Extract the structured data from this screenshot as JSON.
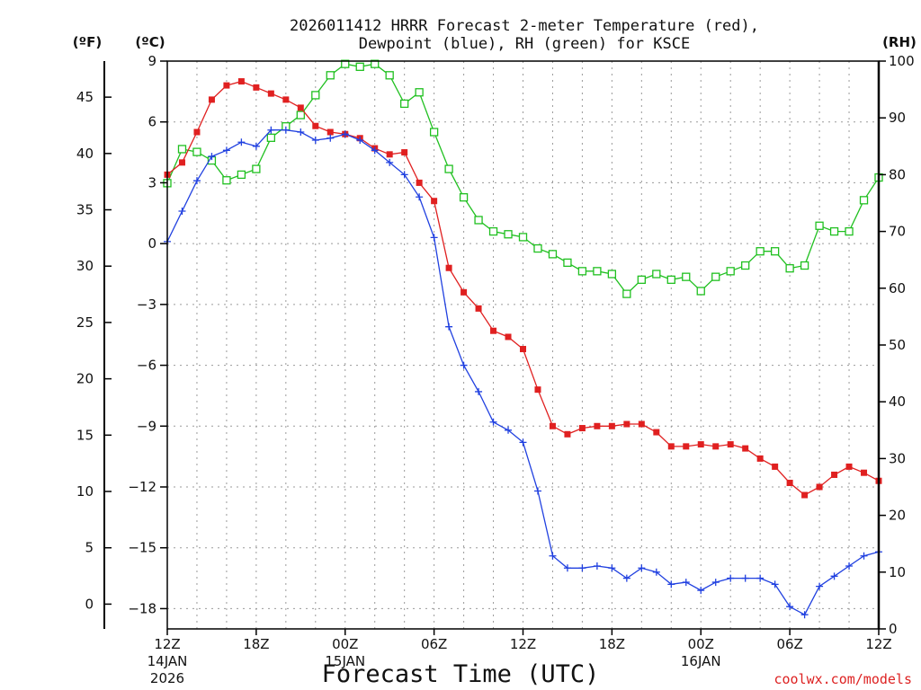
{
  "chart_data": {
    "type": "line",
    "title": {
      "line1": "2026011412 HRRR Forecast 2-meter Temperature (red),",
      "line2": "Dewpoint (blue), RH (green) for KSCE"
    },
    "xlabel": "Forecast Time (UTC)",
    "x_axis": {
      "range_hours": [
        0,
        48
      ],
      "grid_every_hours": 2,
      "ticks": [
        {
          "hour": 0,
          "label": "12Z",
          "sub1": "14JAN",
          "sub2": "2026"
        },
        {
          "hour": 6,
          "label": "18Z",
          "sub1": "",
          "sub2": ""
        },
        {
          "hour": 12,
          "label": "00Z",
          "sub1": "15JAN",
          "sub2": ""
        },
        {
          "hour": 18,
          "label": "06Z",
          "sub1": "",
          "sub2": ""
        },
        {
          "hour": 24,
          "label": "12Z",
          "sub1": "",
          "sub2": ""
        },
        {
          "hour": 30,
          "label": "18Z",
          "sub1": "",
          "sub2": ""
        },
        {
          "hour": 36,
          "label": "00Z",
          "sub1": "16JAN",
          "sub2": ""
        },
        {
          "hour": 42,
          "label": "06Z",
          "sub1": "",
          "sub2": ""
        },
        {
          "hour": 48,
          "label": "12Z",
          "sub1": "",
          "sub2": ""
        }
      ]
    },
    "y_axis_celsius": {
      "unit_label": "(ºC)",
      "ylim": [
        -19,
        9
      ],
      "ticks": [
        9,
        6,
        3,
        0,
        -3,
        -6,
        -9,
        -12,
        -15,
        -18
      ],
      "tick_labels": [
        "9",
        "6",
        "3",
        "0",
        "−3",
        "−6",
        "−9",
        "−12",
        "−15",
        "−18"
      ]
    },
    "y_axis_fahrenheit": {
      "unit_label": "(ºF)",
      "ticks": [
        45,
        40,
        35,
        30,
        25,
        20,
        15,
        10,
        5,
        0
      ]
    },
    "y_axis_rh": {
      "unit_label": "(RH)",
      "ylim": [
        0,
        100
      ],
      "ticks": [
        100,
        90,
        80,
        70,
        60,
        50,
        40,
        30,
        20,
        10,
        0
      ]
    },
    "series": [
      {
        "key": "temperature",
        "color": "#e02020",
        "marker": "filled-square",
        "axis": "celsius",
        "values": [
          3.4,
          4.0,
          5.5,
          7.1,
          7.8,
          8.0,
          7.7,
          7.4,
          7.1,
          6.7,
          5.8,
          5.5,
          5.4,
          5.2,
          4.7,
          4.4,
          4.5,
          3.0,
          2.1,
          -1.2,
          -2.4,
          -3.2,
          -4.3,
          -4.6,
          -5.2,
          -7.2,
          -9.0,
          -9.4,
          -9.1,
          -9.0,
          -9.0,
          -8.9,
          -8.9,
          -9.3,
          -10.0,
          -10.0,
          -9.9,
          -10.0,
          -9.9,
          -10.1,
          -10.6,
          -11.0,
          -11.8,
          -12.4,
          -12.0,
          -11.4,
          -11.0,
          -11.3,
          -11.7
        ]
      },
      {
        "key": "dewpoint",
        "color": "#2040e0",
        "marker": "plus",
        "axis": "celsius",
        "values": [
          0.1,
          1.6,
          3.1,
          4.3,
          4.6,
          5.0,
          4.8,
          5.6,
          5.6,
          5.5,
          5.1,
          5.2,
          5.4,
          5.1,
          4.6,
          4.0,
          3.4,
          2.3,
          0.3,
          -4.1,
          -6.0,
          -7.3,
          -8.8,
          -9.2,
          -9.8,
          -12.2,
          -15.4,
          -16.0,
          -16.0,
          -15.9,
          -16.0,
          -16.5,
          -16.0,
          -16.2,
          -16.8,
          -16.7,
          -17.1,
          -16.7,
          -16.5,
          -16.5,
          -16.5,
          -16.8,
          -17.9,
          -18.3,
          -16.9,
          -16.4,
          -15.9,
          -15.4,
          -15.2
        ]
      },
      {
        "key": "rh",
        "color": "#20c020",
        "marker": "open-square",
        "axis": "rh",
        "values": [
          78.5,
          84.5,
          84.0,
          82.5,
          79.0,
          80.0,
          81.0,
          86.5,
          88.5,
          90.5,
          94,
          97.5,
          99.5,
          99,
          99.5,
          97.5,
          92.5,
          94.5,
          87.5,
          81,
          76,
          72,
          70,
          69.5,
          69,
          67,
          66,
          64.5,
          63,
          63,
          62.5,
          59,
          61.5,
          62.5,
          61.5,
          62,
          59.5,
          62,
          63,
          64,
          66.5,
          66.5,
          63.5,
          64,
          71,
          70,
          70,
          75.5,
          79.5
        ]
      }
    ],
    "credit": "coolwx.com/models"
  }
}
